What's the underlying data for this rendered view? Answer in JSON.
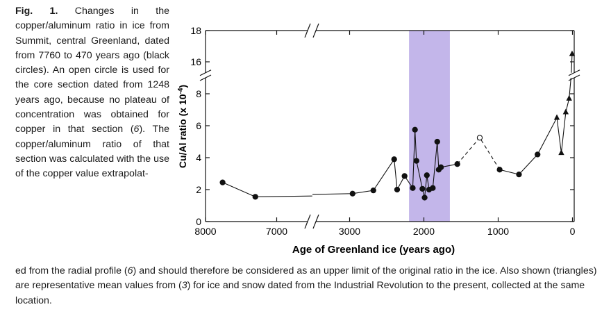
{
  "caption": {
    "label": "Fig. 1.",
    "left_part1": "Changes in the copper/aluminum ratio in ice from Summit, central Greenland, dated from 7760 to 470 years ago (black circles). An open circle is used for the core section dated from 1248 years ago, because no plateau of concentration was obtained for copper in that section (",
    "ref6a": "6",
    "left_part2": "). The copper/aluminum ratio of that section was calculated with the use of the copper value extrapolat-",
    "bottom_part1": "ed from the radial profile (",
    "ref6b": "6",
    "bottom_part2": ") and should therefore be considered as an upper limit of the original ratio in the ice. Also shown (triangles) are representative mean values from (",
    "ref3": "3",
    "bottom_part3": ") for ice and snow dated from the Industrial Revolution to the present, collected at the same location."
  },
  "chart_data": {
    "type": "scatter",
    "xlabel": "Age of Greenland ice (years ago)",
    "ylabel": "Cu/Al ratio (x 10",
    "ylabel_exp": "-4",
    "ylabel_close": ")",
    "x_reversed": true,
    "x_axis_break": "between 6500 and 3500",
    "y_axis_break": "between 9 and 15",
    "x_ticks": [
      {
        "value": 8000,
        "label": "8000"
      },
      {
        "value": 7000,
        "label": "7000"
      },
      {
        "value": 3000,
        "label": "3000"
      },
      {
        "value": 2000,
        "label": "2000"
      },
      {
        "value": 1000,
        "label": "1000"
      },
      {
        "value": 0,
        "label": "0"
      }
    ],
    "y_ticks": [
      {
        "value": 0,
        "label": "0"
      },
      {
        "value": 2,
        "label": "2"
      },
      {
        "value": 4,
        "label": "4"
      },
      {
        "value": 6,
        "label": "6"
      },
      {
        "value": 8,
        "label": "8"
      },
      {
        "value": 16,
        "label": "16"
      },
      {
        "value": 18,
        "label": "18"
      }
    ],
    "shaded_band": {
      "x_from": 2200,
      "x_to": 1650,
      "color": "#c3b6ea"
    },
    "series": [
      {
        "name": "Summit ice (black circles)",
        "marker": "circle-filled",
        "points": [
          [
            7760,
            2.45
          ],
          [
            7300,
            1.55
          ],
          [
            2960,
            1.75
          ],
          [
            2680,
            1.95
          ],
          [
            2400,
            3.9
          ],
          [
            2360,
            2.0
          ],
          [
            2260,
            2.85
          ],
          [
            2150,
            2.1
          ],
          [
            2120,
            5.75
          ],
          [
            2100,
            3.8
          ],
          [
            2020,
            2.05
          ],
          [
            1990,
            1.5
          ],
          [
            1960,
            2.9
          ],
          [
            1930,
            2.0
          ],
          [
            1880,
            2.1
          ],
          [
            1820,
            5.0
          ],
          [
            1800,
            3.25
          ],
          [
            1770,
            3.4
          ],
          [
            1550,
            3.6
          ]
        ]
      },
      {
        "name": "Core section 1248 years ago (open circle)",
        "marker": "circle-open",
        "points": [
          [
            1248,
            5.25
          ]
        ]
      },
      {
        "name": "Summit ice (black circles, after 1248)",
        "marker": "circle-filled",
        "points": [
          [
            980,
            3.25
          ],
          [
            720,
            2.95
          ],
          [
            470,
            4.2
          ]
        ]
      },
      {
        "name": "Industrial Revolution to present (triangles)",
        "marker": "triangle",
        "points": [
          [
            210,
            6.5
          ],
          [
            150,
            4.3
          ],
          [
            90,
            6.85
          ],
          [
            45,
            7.7
          ],
          [
            5,
            16.5
          ]
        ]
      }
    ]
  }
}
